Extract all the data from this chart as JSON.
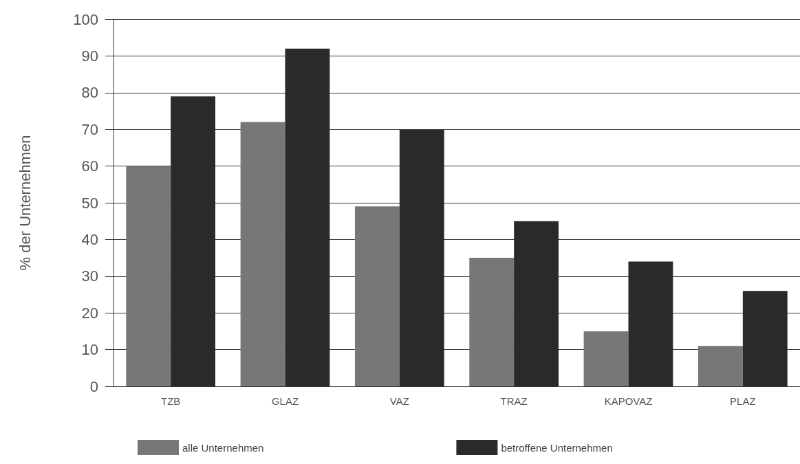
{
  "chart_data": {
    "type": "bar",
    "ylabel": "% der Unternehmen",
    "categories": [
      "TZB",
      "GLAZ",
      "VAZ",
      "TRAZ",
      "KAPOVAZ",
      "PLAZ"
    ],
    "series": [
      {
        "name": "alle Unternehmen",
        "color": "#777777",
        "values": [
          60,
          72,
          49,
          35,
          15,
          11
        ]
      },
      {
        "name": "betroffene Unternehmen",
        "color": "#2a2a2a",
        "values": [
          79,
          92,
          70,
          45,
          34,
          26
        ]
      }
    ],
    "ylim": [
      0,
      100
    ],
    "yticks": [
      0,
      10,
      20,
      30,
      40,
      50,
      60,
      70,
      80,
      90,
      100
    ],
    "grid": "y",
    "legend": "bottom"
  }
}
